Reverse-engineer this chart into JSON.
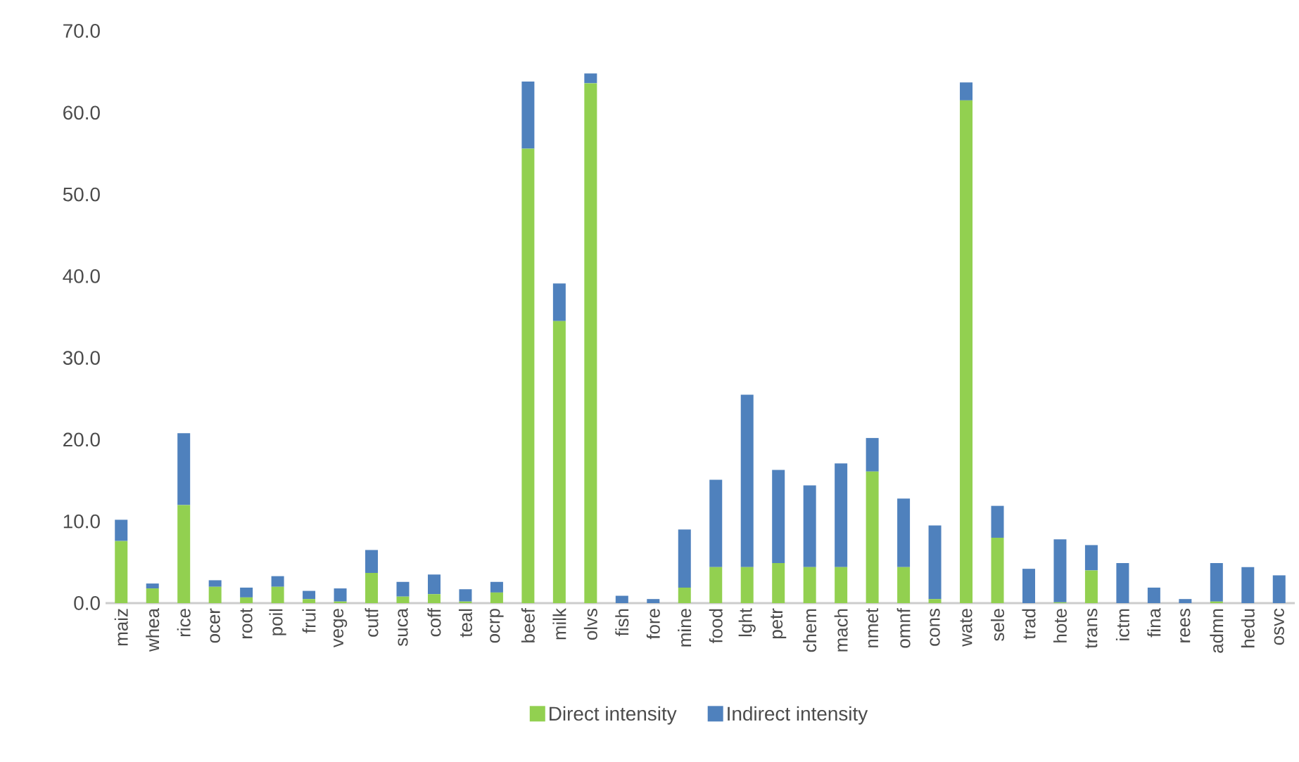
{
  "chart_data": {
    "type": "bar",
    "stacked": true,
    "categories": [
      "maiz",
      "whea",
      "rice",
      "ocer",
      "root",
      "poil",
      "frui",
      "vege",
      "cutf",
      "suca",
      "coff",
      "teal",
      "ocrp",
      "beef",
      "milk",
      "olvs",
      "fish",
      "fore",
      "mine",
      "food",
      "lght",
      "petr",
      "chem",
      "mach",
      "nmet",
      "omnf",
      "cons",
      "wate",
      "sele",
      "trad",
      "hote",
      "trans",
      "ictm",
      "fina",
      "rees",
      "admn",
      "hedu",
      "osvc"
    ],
    "series": [
      {
        "name": "Direct intensity",
        "color": "#92d050",
        "values": [
          7.6,
          1.8,
          12.0,
          2.0,
          0.7,
          2.0,
          0.5,
          0.2,
          3.7,
          0.8,
          1.1,
          0.2,
          1.3,
          55.6,
          34.5,
          63.6,
          0,
          0,
          1.9,
          4.4,
          4.4,
          4.9,
          4.4,
          4.4,
          16.1,
          4.4,
          0.5,
          61.5,
          8.0,
          0,
          0.1,
          4.0,
          0,
          0,
          0,
          0.2,
          0,
          0
        ]
      },
      {
        "name": "Indirect intensity",
        "color": "#4f81bd",
        "values": [
          2.6,
          0.6,
          8.8,
          0.8,
          1.2,
          1.3,
          1.0,
          1.6,
          2.8,
          1.8,
          2.4,
          1.5,
          1.3,
          8.2,
          4.6,
          1.2,
          0.9,
          0.5,
          7.1,
          10.7,
          21.1,
          11.4,
          10.0,
          12.7,
          4.1,
          8.4,
          9.0,
          2.2,
          3.9,
          4.2,
          7.7,
          3.1,
          4.9,
          1.9,
          0.5,
          4.7,
          4.4,
          3.4
        ]
      }
    ],
    "ylim": [
      0,
      70
    ],
    "yticks": [
      {
        "value": 0,
        "label": "0.0"
      },
      {
        "value": 10,
        "label": "10.0"
      },
      {
        "value": 20,
        "label": "20.0"
      },
      {
        "value": 30,
        "label": "30.0"
      },
      {
        "value": 40,
        "label": "40.0"
      },
      {
        "value": 50,
        "label": "50.0"
      },
      {
        "value": 60,
        "label": "60.0"
      },
      {
        "value": 70,
        "label": "70.0"
      }
    ],
    "legend": "bottom"
  }
}
